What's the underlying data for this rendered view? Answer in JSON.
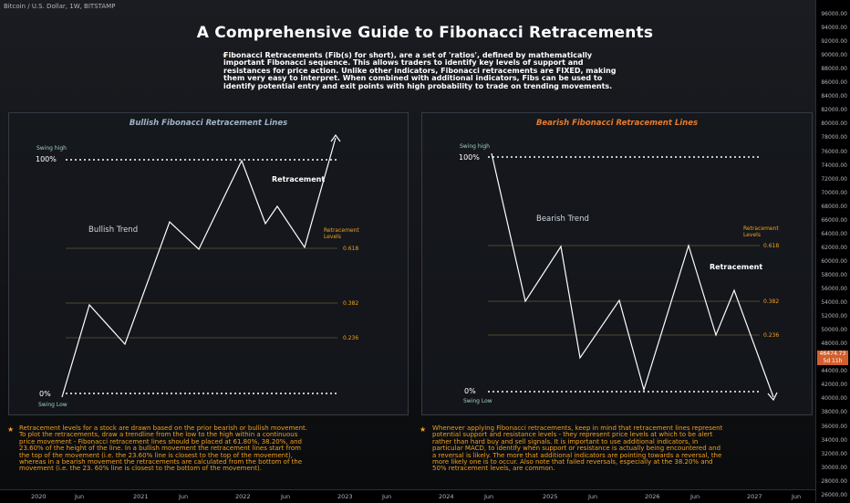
{
  "symbol": "Bitcoin / U.S. Dollar, 1W, BITSTAMP",
  "title": "A Comprehensive Guide to Fibonacci Retracements",
  "intro": "Fibonacci Retracements (Fib(s) for short), are a set of 'ratios', defined by mathematically important Fibonacci sequence. This allows traders to identify key levels of support and resistances for price action. Unlike other indicators, Fibonacci retracements are FIXED, making them very easy to interpret. When combined with additional indicators, Fibs can be used to identify potential entry and exit points with high probability to trade on trending movements.",
  "bullish": {
    "title": "Bullish Fibonacci Retracement Lines",
    "swing_high": "Swing high",
    "swing_low": "Swing Low",
    "pct_100": "100%",
    "pct_0": "0%",
    "trend": "Bullish Trend",
    "retracement": "Retracement",
    "levels_line1": "Retracement",
    "levels_line2": "Levels",
    "l618": "0.618",
    "l382": "0.382",
    "l236": "0.236"
  },
  "bearish": {
    "title": "Bearish Fibonacci Retracement Lines",
    "swing_high": "Swing high",
    "swing_low": "Swing Low",
    "pct_100": "100%",
    "pct_0": "0%",
    "trend": "Bearish Trend",
    "retracement": "Retracement",
    "levels_line1": "Retracement",
    "levels_line2": "Levels",
    "l618": "0.618",
    "l382": "0.382",
    "l236": "0.236"
  },
  "notes_left": "Retracement levels for a stock are drawn based on the prior bearish or bullish movement. To plot the retracements, draw a trendline from the low to the high within a continuous price movement - Fibonacci retracement lines should be placed at 61.80%, 38.20%, and 23.60% of the height of the line. In a bullish movement the retracement lines start from the top of the movement (i.e. the 23.60% line is closest to the top of the movement), whereas in a bearish movement the retracements are calculated from the bottom of the movement (i.e. the 23. 60% line is closest to the bottom of the movement).",
  "notes_right": "Whenever applying Fibonacci retracements, keep in mind that retracement lines represent potential support and resistance levels - they represent price levels at which to be alert rather than hard buy and sell signals. It is important to use additional indicators, in particular MACD, to identify when support or resistance is actually being encountered and a reversal is likely. The more that additional indicators are pointing towards a reversal, the more likely one is to occur. Also note that failed reversals, especially at the 38.20% and 50% retracement levels, are common.",
  "price_ticks": [
    "96000.00",
    "94000.00",
    "92000.00",
    "90000.00",
    "88000.00",
    "86000.00",
    "84000.00",
    "82000.00",
    "80000.00",
    "78000.00",
    "76000.00",
    "74000.00",
    "72000.00",
    "70000.00",
    "68000.00",
    "66000.00",
    "64000.00",
    "62000.00",
    "60000.00",
    "58000.00",
    "56000.00",
    "54000.00",
    "52000.00",
    "50000.00",
    "48000.00",
    "46000.00",
    "44000.00",
    "42000.00",
    "40000.00",
    "38000.00",
    "36000.00",
    "34000.00",
    "32000.00",
    "30000.00",
    "28000.00",
    "26000.00"
  ],
  "price_badge": {
    "price": "46474.73",
    "countdown": "5d 11h"
  },
  "time_labels": [
    "2020",
    "Jun",
    "2021",
    "Jun",
    "2022",
    "Jun",
    "2023",
    "Jun",
    "2024",
    "Jun",
    "2025",
    "Jun",
    "2026",
    "Jun",
    "2027",
    "Jun"
  ],
  "colors": {
    "accent": "#f0a020",
    "bull_title": "#9fb3c8",
    "bear_title": "#e87a2c",
    "badge": "#d35f2e"
  }
}
